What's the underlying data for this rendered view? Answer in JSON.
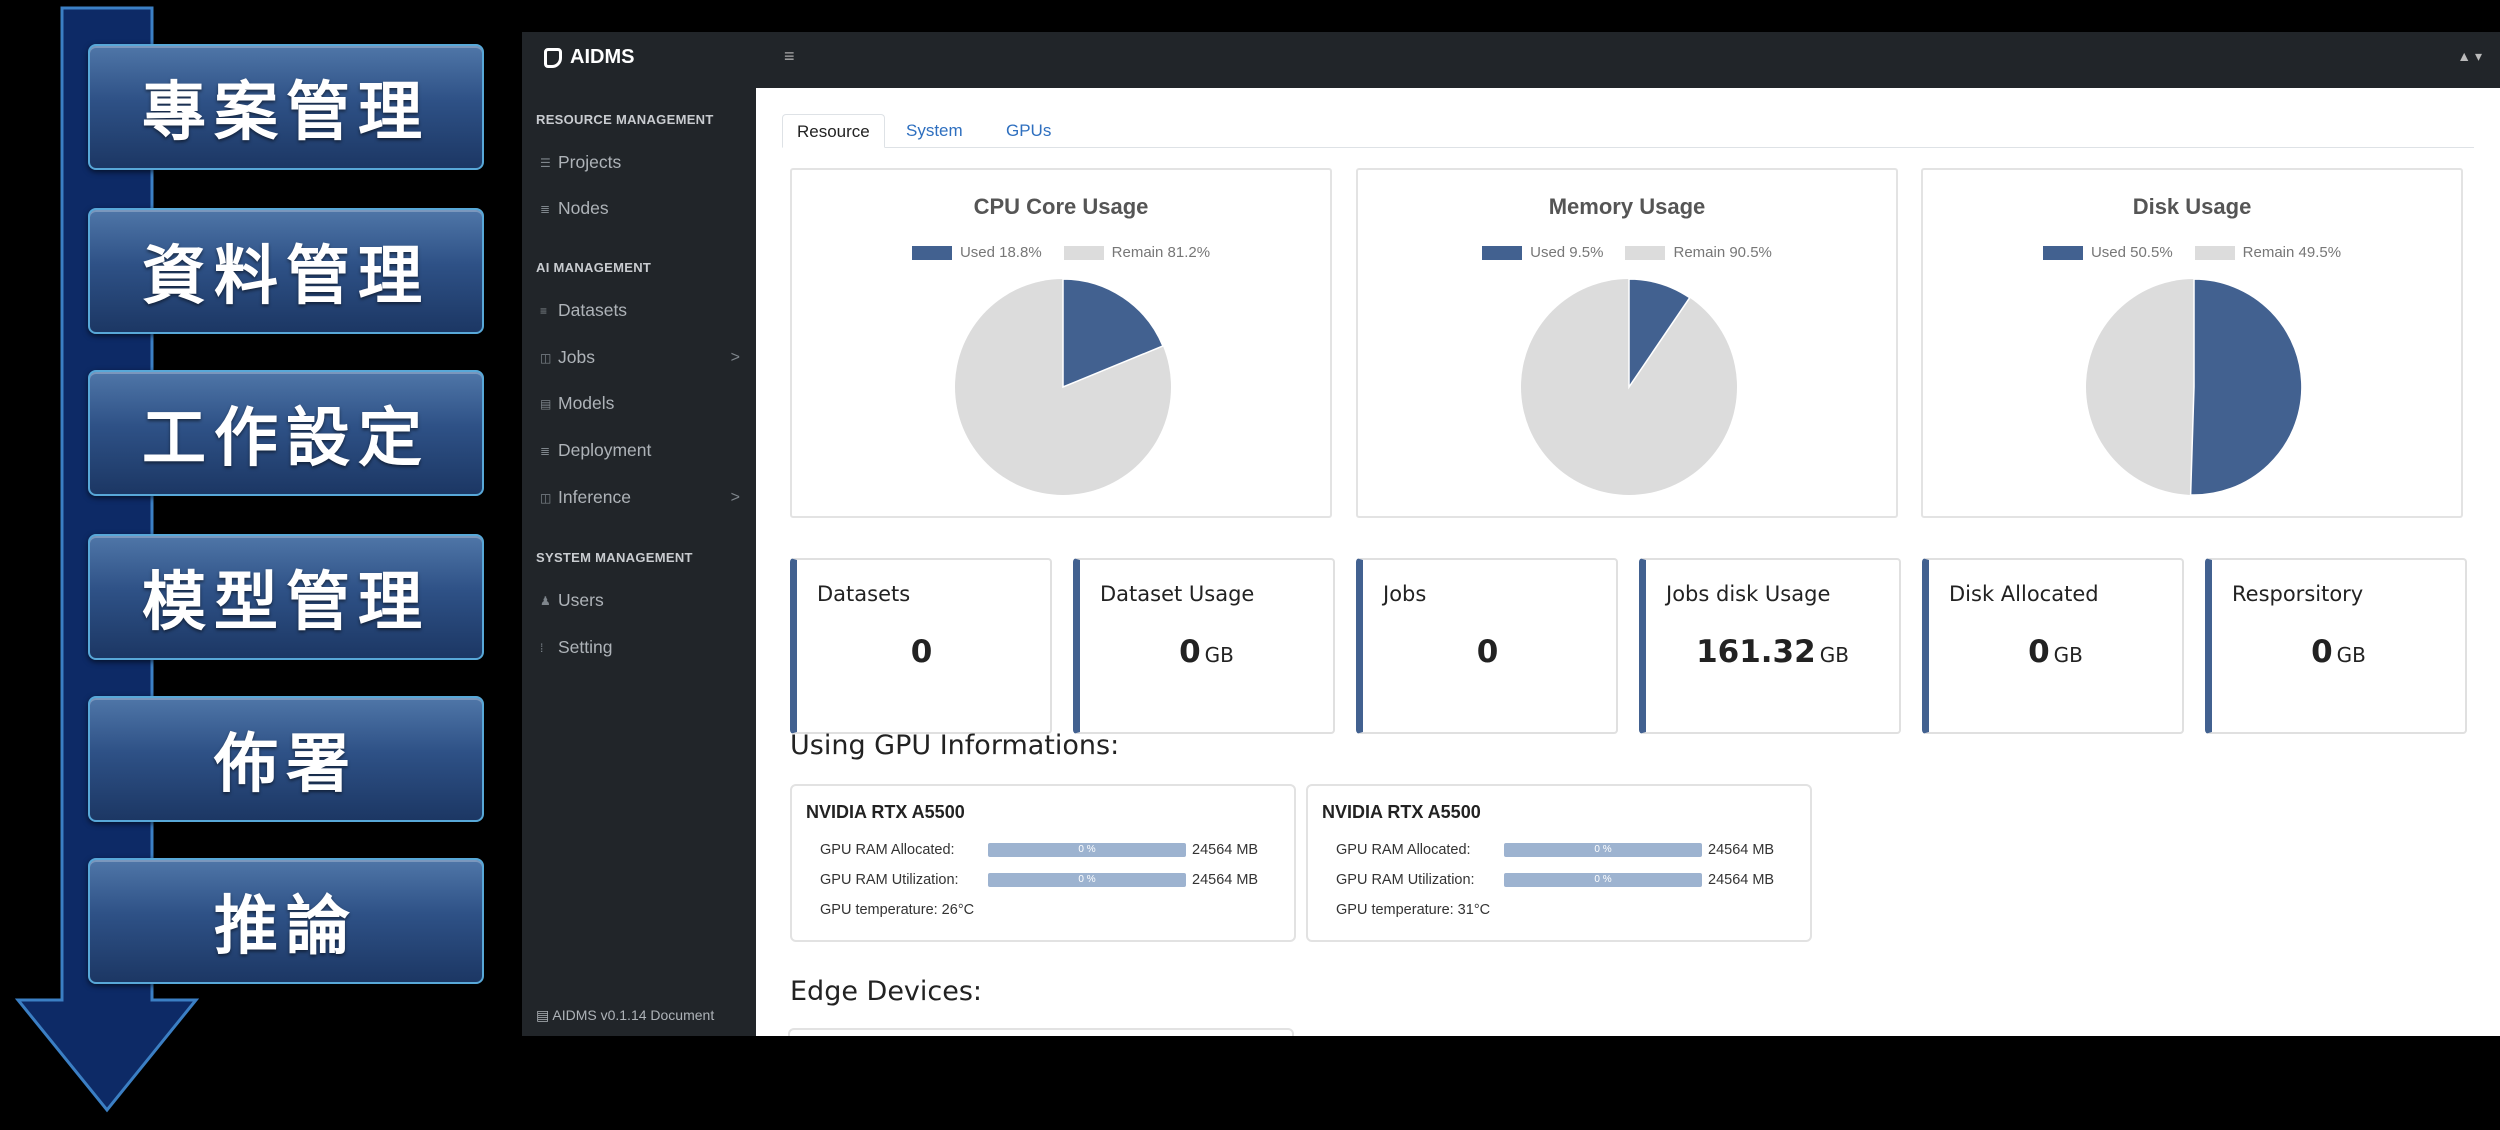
{
  "workflow": {
    "steps": [
      "專案管理",
      "資料管理",
      "工作設定",
      "模型管理",
      "佈署",
      "推論"
    ],
    "colors": {
      "arrow": "#0d2a66",
      "box": "#2e5186",
      "border": "#58a8d8"
    }
  },
  "app": {
    "brand": "AIDMS",
    "menu_icon": "≡",
    "user_icon": "▲ ▾",
    "footer": "AIDMS v0.1.14 Document",
    "accent_color": "#426190"
  },
  "sidebar": {
    "sections": [
      {
        "heading": "RESOURCE MANAGEMENT",
        "items": [
          {
            "label": "Projects",
            "icon": "list-icon"
          },
          {
            "label": "Nodes",
            "icon": "server-icon"
          }
        ]
      },
      {
        "heading": "AI MANAGEMENT",
        "items": [
          {
            "label": "Datasets",
            "icon": "database-icon"
          },
          {
            "label": "Jobs",
            "icon": "briefcase-icon",
            "chevron": ">"
          },
          {
            "label": "Models",
            "icon": "cube-icon"
          },
          {
            "label": "Deployment",
            "icon": "rocket-icon"
          },
          {
            "label": "Inference",
            "icon": "bolt-icon",
            "chevron": ">"
          }
        ]
      },
      {
        "heading": "SYSTEM MANAGEMENT",
        "items": [
          {
            "label": "Users",
            "icon": "user-icon"
          },
          {
            "label": "Setting",
            "icon": "gear-icon"
          }
        ]
      }
    ]
  },
  "tabs": [
    {
      "label": "Resource",
      "active": true
    },
    {
      "label": "System",
      "active": false
    },
    {
      "label": "GPUs",
      "active": false
    }
  ],
  "pies": [
    {
      "title": "CPU Core Usage",
      "used_label": "Used 18.8%",
      "remain_label": "Remain 81.2%",
      "used": 18.8
    },
    {
      "title": "Memory Usage",
      "used_label": "Used 9.5%",
      "remain_label": "Remain 90.5%",
      "used": 9.5
    },
    {
      "title": "Disk Usage",
      "used_label": "Used 50.5%",
      "remain_label": "Remain 49.5%",
      "used": 50.5
    }
  ],
  "pie_colors": {
    "used": "#426190",
    "remain": "#dcdcdc"
  },
  "stats": [
    {
      "label": "Datasets",
      "value": "0",
      "unit": ""
    },
    {
      "label": "Dataset Usage",
      "value": "0",
      "unit": "GB"
    },
    {
      "label": "Jobs",
      "value": "0",
      "unit": ""
    },
    {
      "label": "Jobs disk Usage",
      "value": "161.32",
      "unit": "GB"
    },
    {
      "label": "Disk Allocated",
      "value": "0",
      "unit": "GB"
    },
    {
      "label": "Resporsitory",
      "value": "0",
      "unit": "GB"
    }
  ],
  "gpu_section_title": "Using GPU Informations:",
  "gpus": [
    {
      "name": "NVIDIA RTX A5500",
      "ram_allocated_label": "GPU RAM Allocated:",
      "ram_allocated_pct": "0 %",
      "ram_allocated_total": "24564 MB",
      "ram_util_label": "GPU RAM Utilization:",
      "ram_util_pct": "0 %",
      "ram_util_total": "24564 MB",
      "temp_label": "GPU temperature: 26°C"
    },
    {
      "name": "NVIDIA RTX A5500",
      "ram_allocated_label": "GPU RAM Allocated:",
      "ram_allocated_pct": "0 %",
      "ram_allocated_total": "24564 MB",
      "ram_util_label": "GPU RAM Utilization:",
      "ram_util_pct": "0 %",
      "ram_util_total": "24564 MB",
      "temp_label": "GPU temperature: 31°C"
    }
  ],
  "edge_section_title": "Edge Devices:"
}
